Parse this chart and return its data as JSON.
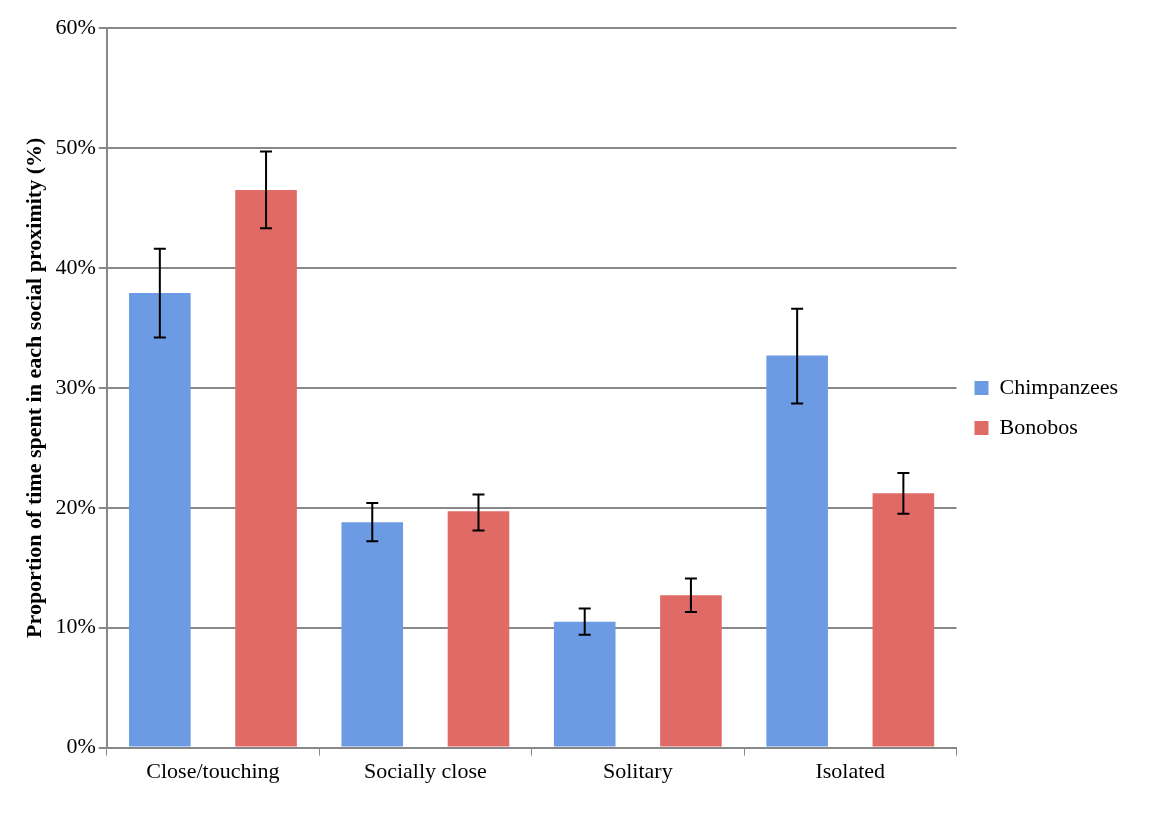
{
  "chart_data": {
    "type": "bar",
    "ylabel": "Proportion of time spent in each social proximity (%)",
    "categories": [
      "Close/touching",
      "Socially close",
      "Solitary",
      "Isolated"
    ],
    "series": [
      {
        "name": "Chimpanzees",
        "color": "#6d9be3",
        "values": [
          37.9,
          18.8,
          10.5,
          32.7
        ],
        "errors": [
          [
            34.2,
            41.6
          ],
          [
            17.2,
            20.4
          ],
          [
            9.4,
            11.6
          ],
          [
            28.7,
            36.6
          ]
        ]
      },
      {
        "name": "Bonobos",
        "color": "#e06a66",
        "values": [
          46.5,
          19.7,
          12.7,
          21.2
        ],
        "errors": [
          [
            43.3,
            49.7
          ],
          [
            18.1,
            21.1
          ],
          [
            11.3,
            14.1
          ],
          [
            19.5,
            22.9
          ]
        ]
      }
    ],
    "ylim": [
      0,
      60
    ],
    "yticks": [
      {
        "value": 0,
        "label": "0%"
      },
      {
        "value": 10,
        "label": "10%"
      },
      {
        "value": 20,
        "label": "20%"
      },
      {
        "value": 30,
        "label": "30%"
      },
      {
        "value": 40,
        "label": "40%"
      },
      {
        "value": 50,
        "label": "50%"
      },
      {
        "value": 60,
        "label": "60%"
      }
    ],
    "grid": "y",
    "legend": "right"
  }
}
